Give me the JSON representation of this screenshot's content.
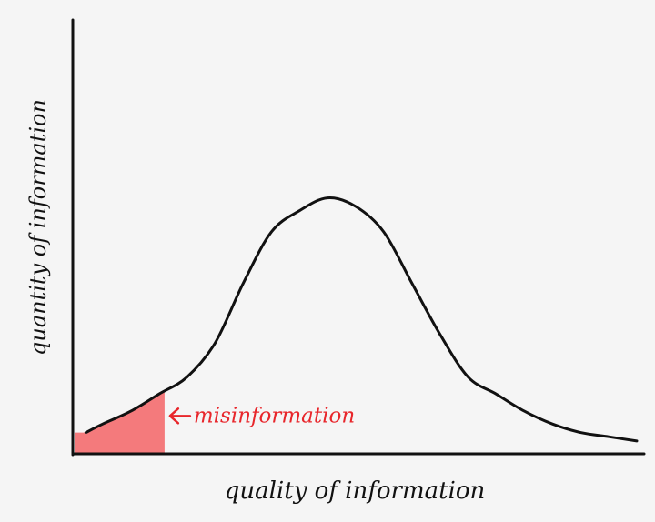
{
  "chart_data": {
    "type": "area",
    "title": "",
    "xlabel": "quality of information",
    "ylabel": "quantity of information",
    "xlim": [
      0,
      100
    ],
    "ylim": [
      0,
      100
    ],
    "grid": false,
    "legend": "none",
    "series": [
      {
        "x": [
          2,
          5,
          10,
          15,
          20,
          25,
          30,
          35,
          40,
          45,
          50,
          55,
          60,
          65,
          70,
          75,
          80,
          85,
          90,
          95,
          100
        ],
        "values": [
          5,
          7,
          10,
          14,
          18,
          26,
          40,
          52,
          57,
          60,
          58,
          52,
          40,
          28,
          18,
          14,
          10,
          7,
          5,
          4,
          3
        ]
      }
    ],
    "highlight": {
      "label": "misinformation",
      "x_range": [
        0,
        16
      ],
      "color": "#f47a7c"
    },
    "colors": {
      "curve": "#111111",
      "axis": "#111111",
      "annotation": "#e8262b"
    }
  }
}
